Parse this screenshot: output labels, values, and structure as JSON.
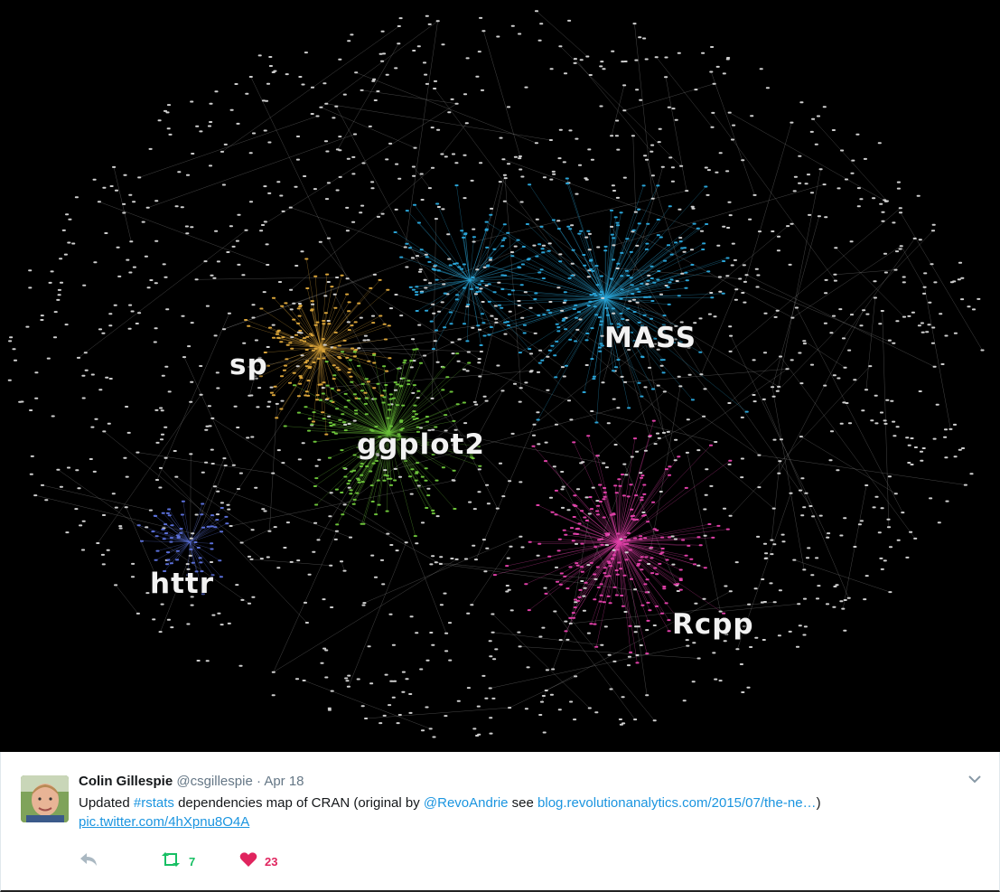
{
  "media": {
    "labels": {
      "sp": "sp",
      "ggplot2": "ggplot2",
      "mass": "MASS",
      "httr": "httr",
      "rcpp": "Rcpp"
    },
    "colors": {
      "background": "#000000",
      "sp": "#d9a43a",
      "ggplot2": "#6cc23a",
      "mass": "#2aa3d6",
      "httr": "#5a6fd8",
      "rcpp": "#e040a8",
      "neutral": "#cfcfcf"
    }
  },
  "tweet": {
    "author_name": "Colin Gillespie",
    "author_handle": "@csgillespie",
    "separator": "·",
    "date": "Apr 18",
    "text_prefix": "Updated ",
    "hashtag": "#rstats",
    "text_middle": " dependencies map of CRAN (original by ",
    "mention": "@RevoAndrie",
    "text_see": " see ",
    "url": "blog.revolutionanalytics.com/2015/07/the-ne…",
    "text_suffix": ")",
    "pic_link": "pic.twitter.com/4hXpnu8O4A"
  },
  "actions": {
    "reply_icon": "reply-icon",
    "retweet_icon": "retweet-icon",
    "retweet_count": "7",
    "like_icon": "heart-icon",
    "like_count": "23",
    "retweet_color": "#17bf63",
    "like_color": "#e0245e",
    "reply_color": "#aab8c2"
  }
}
